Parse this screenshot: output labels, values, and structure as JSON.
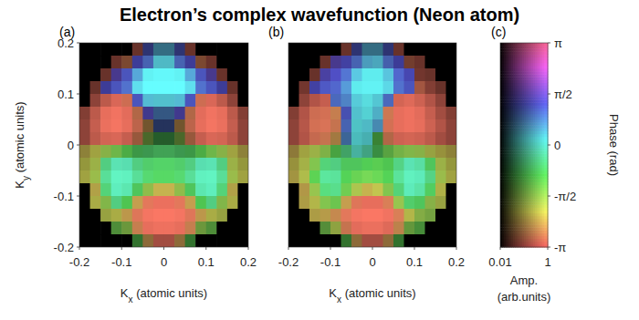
{
  "title": "Electron’s complex wavefunction (Neon atom)",
  "chart_data": [
    {
      "type": "heatmap",
      "panel_label": "(a)",
      "xlabel": "Kx (atomic units)",
      "ylabel": "Ky (atomic units)",
      "xlim": [
        -0.2,
        0.2
      ],
      "ylim": [
        -0.2,
        0.2
      ],
      "xticks": [
        -0.2,
        -0.1,
        0,
        0.1,
        0.2
      ],
      "yticks": [
        -0.2,
        -0.1,
        0,
        0.1,
        0.2
      ],
      "x": [
        -0.1875,
        -0.1625,
        -0.1375,
        -0.1125,
        -0.0875,
        -0.0625,
        -0.0375,
        -0.0125,
        0.0125,
        0.0375,
        0.0625,
        0.0875,
        0.1125,
        0.1375,
        0.1625,
        0.1875
      ],
      "y": [
        0.1875,
        0.1625,
        0.1375,
        0.1125,
        0.0875,
        0.0625,
        0.0375,
        0.0125,
        -0.0125,
        -0.0375,
        -0.0625,
        -0.0875,
        -0.1125,
        -0.1375,
        -0.1625,
        -0.1875
      ],
      "amplitude": [
        [
          0.01,
          0.01,
          0.01,
          0.01,
          0.01,
          0.05,
          0.06,
          0.08,
          0.08,
          0.06,
          0.05,
          0.01,
          0.01,
          0.01,
          0.01,
          0.01
        ],
        [
          0.01,
          0.01,
          0.01,
          0.05,
          0.07,
          0.12,
          0.2,
          0.3,
          0.3,
          0.2,
          0.12,
          0.07,
          0.05,
          0.01,
          0.01,
          0.01
        ],
        [
          0.01,
          0.01,
          0.05,
          0.1,
          0.25,
          0.45,
          0.8,
          0.9,
          0.9,
          0.8,
          0.45,
          0.25,
          0.1,
          0.05,
          0.01,
          0.01
        ],
        [
          0.01,
          0.05,
          0.12,
          0.25,
          0.35,
          0.7,
          1,
          1,
          1,
          1,
          0.7,
          0.35,
          0.25,
          0.12,
          0.05,
          0.01
        ],
        [
          0.01,
          0.1,
          0.25,
          0.45,
          0.35,
          0.25,
          0.4,
          0.35,
          0.35,
          0.4,
          0.25,
          0.35,
          0.45,
          0.25,
          0.1,
          0.01
        ],
        [
          0.08,
          0.25,
          0.6,
          0.75,
          0.55,
          0.2,
          0.1,
          0.08,
          0.08,
          0.1,
          0.2,
          0.55,
          0.75,
          0.6,
          0.25,
          0.08
        ],
        [
          0.1,
          0.3,
          0.65,
          0.8,
          0.6,
          0.25,
          0.06,
          0.04,
          0.04,
          0.06,
          0.25,
          0.6,
          0.8,
          0.65,
          0.3,
          0.1
        ],
        [
          0.1,
          0.25,
          0.4,
          0.45,
          0.3,
          0.12,
          0.05,
          0.04,
          0.04,
          0.05,
          0.12,
          0.3,
          0.45,
          0.4,
          0.25,
          0.1
        ],
        [
          0.1,
          0.15,
          0.2,
          0.22,
          0.18,
          0.12,
          0.12,
          0.15,
          0.15,
          0.12,
          0.12,
          0.18,
          0.22,
          0.2,
          0.15,
          0.1
        ],
        [
          0.12,
          0.2,
          0.35,
          0.55,
          0.5,
          0.35,
          0.35,
          0.4,
          0.4,
          0.35,
          0.35,
          0.5,
          0.55,
          0.35,
          0.2,
          0.12
        ],
        [
          0.15,
          0.25,
          0.5,
          0.8,
          0.75,
          0.5,
          0.45,
          0.45,
          0.45,
          0.45,
          0.5,
          0.75,
          0.8,
          0.5,
          0.25,
          0.15
        ],
        [
          0.01,
          0.2,
          0.4,
          0.7,
          0.6,
          0.3,
          0.25,
          0.3,
          0.3,
          0.25,
          0.3,
          0.6,
          0.7,
          0.4,
          0.2,
          0.01
        ],
        [
          0.01,
          0.18,
          0.22,
          0.35,
          0.3,
          0.3,
          0.55,
          0.65,
          0.65,
          0.55,
          0.3,
          0.3,
          0.35,
          0.22,
          0.18,
          0.01
        ],
        [
          0.01,
          0.01,
          0.15,
          0.18,
          0.25,
          0.5,
          0.8,
          0.9,
          0.9,
          0.8,
          0.5,
          0.25,
          0.18,
          0.15,
          0.01,
          0.01
        ],
        [
          0.01,
          0.01,
          0.01,
          0.1,
          0.12,
          0.3,
          0.6,
          0.7,
          0.7,
          0.6,
          0.3,
          0.12,
          0.1,
          0.01,
          0.01,
          0.01
        ],
        [
          0.01,
          0.01,
          0.01,
          0.01,
          0.01,
          0.06,
          0.1,
          0.15,
          0.15,
          0.1,
          0.06,
          0.01,
          0.01,
          0.01,
          0.01,
          0.01
        ]
      ],
      "phase": [
        [
          0,
          0,
          0,
          0,
          0,
          -3,
          1.2,
          0.5,
          0.5,
          1.2,
          -3,
          0,
          0,
          0,
          0,
          0
        ],
        [
          0,
          0,
          0,
          -3,
          -2.8,
          1.3,
          1,
          0.3,
          0.3,
          1,
          1.3,
          -2.8,
          -3,
          0,
          0,
          0
        ],
        [
          0,
          0,
          -3,
          1.5,
          1.2,
          0.6,
          0.2,
          0.2,
          0.2,
          0.2,
          0.6,
          1.2,
          1.5,
          -3,
          0,
          0
        ],
        [
          0,
          -3,
          1.3,
          1.2,
          1,
          0.3,
          0.2,
          0.2,
          0.2,
          0.2,
          0.3,
          1,
          1.2,
          1.3,
          -3,
          0
        ],
        [
          0,
          -3,
          -3,
          -3,
          -2.9,
          1.2,
          0.4,
          0.3,
          0.3,
          0.4,
          1.2,
          -2.9,
          -3,
          -3,
          -3,
          0
        ],
        [
          -3,
          -3,
          -3,
          -3,
          -3,
          -2.8,
          1.4,
          0.8,
          0.8,
          1.4,
          -2.8,
          -3,
          -3,
          -3,
          -3,
          -3
        ],
        [
          -3,
          -3,
          -3,
          -3,
          -3,
          -2.9,
          -2.5,
          1,
          1,
          -2.5,
          -2.9,
          -3,
          -3,
          -3,
          -3,
          -3
        ],
        [
          -3,
          -3,
          -3,
          -3,
          -3,
          -2.8,
          -1.5,
          -0.8,
          -0.8,
          -1.5,
          -2.8,
          -3,
          -3,
          -3,
          -3,
          -3
        ],
        [
          -2.2,
          -2,
          -1.6,
          -1.3,
          -1,
          -0.8,
          -0.7,
          -0.7,
          -0.7,
          -0.7,
          -0.8,
          -1,
          -1.3,
          -1.6,
          -2,
          -2.2
        ],
        [
          -2,
          -1.8,
          -0.5,
          -0.2,
          -0.2,
          -0.5,
          -0.7,
          -0.75,
          -0.75,
          -0.7,
          -0.5,
          -0.2,
          -0.2,
          -0.5,
          -1.8,
          -2
        ],
        [
          -2,
          -1.7,
          -0.4,
          -0.2,
          -0.2,
          -0.4,
          -0.7,
          -0.8,
          -0.8,
          -0.7,
          -0.4,
          -0.2,
          -0.2,
          -0.4,
          -1.7,
          -2
        ],
        [
          0,
          -2.2,
          -0.6,
          -0.2,
          -0.25,
          -0.8,
          -1.6,
          -2.2,
          -2.2,
          -1.6,
          -0.8,
          -0.25,
          -0.2,
          -0.6,
          -2.2,
          0
        ],
        [
          0,
          -2,
          -1.5,
          -0.5,
          -0.9,
          -2.4,
          -2.9,
          -3,
          -3,
          -2.9,
          -2.4,
          -0.9,
          -0.5,
          -1.5,
          -2,
          0
        ],
        [
          0,
          0,
          -1.9,
          -2,
          -2.4,
          -2.9,
          -3,
          -3,
          -3,
          -3,
          -2.9,
          -2.4,
          -2,
          -1.9,
          0,
          0
        ],
        [
          0,
          0,
          0,
          -1.2,
          -1.5,
          -2.7,
          -3,
          -3,
          -3,
          -3,
          -2.7,
          -1.5,
          -1.2,
          0,
          0,
          0
        ],
        [
          0,
          0,
          0,
          0,
          0,
          -1,
          -2.5,
          -3,
          -3,
          -2.5,
          -1,
          0,
          0,
          0,
          0,
          0
        ]
      ]
    },
    {
      "type": "heatmap",
      "panel_label": "(b)",
      "xlabel": "Kx (atomic units)",
      "tick_labels": "x",
      "xlim": [
        -0.2,
        0.2
      ],
      "ylim": [
        -0.2,
        0.2
      ],
      "xticks": [
        -0.2,
        -0.1,
        0,
        0.1,
        0.2
      ],
      "x": [
        -0.1875,
        -0.1625,
        -0.1375,
        -0.1125,
        -0.0875,
        -0.0625,
        -0.0375,
        -0.0125,
        0.0125,
        0.0375,
        0.0625,
        0.0875,
        0.1125,
        0.1375,
        0.1625,
        0.1875
      ],
      "y": [
        0.1875,
        0.1625,
        0.1375,
        0.1125,
        0.0875,
        0.0625,
        0.0375,
        0.0125,
        -0.0125,
        -0.0375,
        -0.0625,
        -0.0875,
        -0.1125,
        -0.1375,
        -0.1625,
        -0.1875
      ],
      "amplitude": [
        [
          0.01,
          0.01,
          0.01,
          0.01,
          0.01,
          0.05,
          0.06,
          0.08,
          0.08,
          0.06,
          0.05,
          0.01,
          0.01,
          0.01,
          0.01,
          0.01
        ],
        [
          0.01,
          0.01,
          0.01,
          0.05,
          0.1,
          0.15,
          0.2,
          0.25,
          0.25,
          0.18,
          0.12,
          0.06,
          0.05,
          0.01,
          0.01,
          0.01
        ],
        [
          0.01,
          0.01,
          0.05,
          0.15,
          0.3,
          0.4,
          0.55,
          0.7,
          0.7,
          0.5,
          0.35,
          0.2,
          0.06,
          0.05,
          0.01,
          0.01
        ],
        [
          0.01,
          0.06,
          0.15,
          0.3,
          0.35,
          0.45,
          0.7,
          0.8,
          0.8,
          0.6,
          0.35,
          0.25,
          0.15,
          0.08,
          0.05,
          0.01
        ],
        [
          0.01,
          0.1,
          0.2,
          0.3,
          0.25,
          0.3,
          0.45,
          0.5,
          0.4,
          0.25,
          0.4,
          0.5,
          0.35,
          0.2,
          0.1,
          0.01
        ],
        [
          0.08,
          0.2,
          0.35,
          0.4,
          0.3,
          0.2,
          0.35,
          0.4,
          0.3,
          0.35,
          0.6,
          0.7,
          0.55,
          0.3,
          0.15,
          0.08
        ],
        [
          0.1,
          0.22,
          0.4,
          0.45,
          0.3,
          0.2,
          0.3,
          0.3,
          0.2,
          0.4,
          0.6,
          0.7,
          0.6,
          0.35,
          0.2,
          0.1
        ],
        [
          0.1,
          0.2,
          0.3,
          0.3,
          0.15,
          0.12,
          0.25,
          0.2,
          0.08,
          0.2,
          0.35,
          0.4,
          0.35,
          0.25,
          0.15,
          0.1
        ],
        [
          0.1,
          0.15,
          0.2,
          0.2,
          0.15,
          0.15,
          0.2,
          0.15,
          0.1,
          0.15,
          0.2,
          0.22,
          0.2,
          0.15,
          0.12,
          0.1
        ],
        [
          0.12,
          0.2,
          0.3,
          0.4,
          0.35,
          0.3,
          0.3,
          0.35,
          0.35,
          0.3,
          0.4,
          0.55,
          0.5,
          0.3,
          0.2,
          0.12
        ],
        [
          0.15,
          0.25,
          0.4,
          0.6,
          0.55,
          0.4,
          0.4,
          0.45,
          0.45,
          0.4,
          0.55,
          0.75,
          0.65,
          0.4,
          0.25,
          0.15
        ],
        [
          0.01,
          0.2,
          0.3,
          0.5,
          0.5,
          0.35,
          0.3,
          0.3,
          0.3,
          0.3,
          0.4,
          0.65,
          0.55,
          0.35,
          0.2,
          0.01
        ],
        [
          0.01,
          0.18,
          0.22,
          0.3,
          0.3,
          0.3,
          0.5,
          0.6,
          0.6,
          0.45,
          0.3,
          0.35,
          0.3,
          0.2,
          0.15,
          0.01
        ],
        [
          0.01,
          0.01,
          0.18,
          0.22,
          0.3,
          0.55,
          0.8,
          0.9,
          0.9,
          0.75,
          0.45,
          0.22,
          0.18,
          0.15,
          0.01,
          0.01
        ],
        [
          0.01,
          0.01,
          0.01,
          0.1,
          0.15,
          0.3,
          0.55,
          0.65,
          0.65,
          0.5,
          0.25,
          0.12,
          0.1,
          0.01,
          0.01,
          0.01
        ],
        [
          0.01,
          0.01,
          0.01,
          0.01,
          0.01,
          0.06,
          0.1,
          0.15,
          0.15,
          0.1,
          0.06,
          0.01,
          0.01,
          0.01,
          0.01,
          0.01
        ]
      ],
      "phase": [
        [
          0,
          0,
          0,
          0,
          0,
          -3,
          1.2,
          0.5,
          0.5,
          1.2,
          -3,
          0,
          0,
          0,
          0,
          0
        ],
        [
          0,
          0,
          0,
          -3,
          1.5,
          1.3,
          1,
          0.5,
          0.4,
          1,
          1.3,
          -2.9,
          -3,
          0,
          0,
          0
        ],
        [
          0,
          0,
          -3,
          1.4,
          1.3,
          1,
          0.4,
          0.2,
          0.2,
          0.4,
          1.1,
          1.3,
          -3,
          -3,
          0,
          0
        ],
        [
          0,
          -3,
          1.3,
          1.2,
          1.1,
          0.7,
          0.2,
          0.2,
          0.2,
          0.3,
          1,
          1.2,
          -2.9,
          -3,
          -3,
          0
        ],
        [
          0,
          -3,
          -3,
          -3,
          1,
          0.8,
          0.3,
          0.2,
          0.3,
          1,
          -3,
          -3,
          -3,
          -3,
          -3,
          0
        ],
        [
          -3,
          -3,
          -2.9,
          -2.9,
          -2.7,
          1.2,
          0.3,
          0.2,
          0.4,
          -2.8,
          -3,
          -3,
          -3,
          -3,
          -3,
          -3
        ],
        [
          -3,
          -3,
          -2.9,
          -2.9,
          -2.8,
          1,
          0.2,
          0.3,
          0.6,
          -2.9,
          -3,
          -3,
          -3,
          -3,
          -3,
          -3
        ],
        [
          -3,
          -3,
          -2.9,
          -2.8,
          -2.5,
          0.8,
          0.2,
          0.2,
          -1,
          -2.8,
          -3,
          -3,
          -3,
          -3,
          -3,
          -3
        ],
        [
          -2.3,
          -2,
          -1.8,
          -1.5,
          -1,
          -0.5,
          0,
          -0.2,
          -0.8,
          -1.2,
          -1.4,
          -1.5,
          -1.6,
          -1.9,
          -2.1,
          -2.2
        ],
        [
          -2.1,
          -1.9,
          -1.4,
          -0.6,
          -0.5,
          -0.8,
          -0.8,
          -0.9,
          -1,
          -0.9,
          -0.5,
          -0.2,
          -0.3,
          -0.8,
          -1.8,
          -2
        ],
        [
          -2.2,
          -1.9,
          -1,
          -0.4,
          -0.4,
          -0.9,
          -1.1,
          -1.2,
          -1.1,
          -0.9,
          -0.4,
          -0.2,
          -0.2,
          -0.5,
          -1.7,
          -2
        ],
        [
          0,
          -2.3,
          -1.6,
          -0.6,
          -0.5,
          -1.2,
          -1.8,
          -2.2,
          -2,
          -1.4,
          -0.6,
          -0.2,
          -0.3,
          -0.8,
          -2,
          0
        ],
        [
          0,
          -2.2,
          -2,
          -1.4,
          -1.2,
          -2.4,
          -2.9,
          -3,
          -3,
          -2.8,
          -1.6,
          -0.7,
          -0.8,
          -1.6,
          -1.9,
          0
        ],
        [
          0,
          0,
          -2.2,
          -2.3,
          -2.6,
          -2.9,
          -3,
          -3,
          -3,
          -3,
          -2.8,
          -2,
          -1.6,
          -1.5,
          0,
          0
        ],
        [
          0,
          0,
          0,
          -1.3,
          -1.8,
          -2.8,
          -3,
          -3,
          -3,
          -3,
          -2.6,
          -1.4,
          -1.1,
          0,
          0,
          0
        ],
        [
          0,
          0,
          0,
          0,
          0,
          -1,
          -2.5,
          -3,
          -3,
          -2.5,
          -1,
          0,
          0,
          0,
          0,
          0
        ]
      ]
    },
    {
      "type": "colorbar",
      "panel_label": "(c)",
      "xlabel": [
        "Amp.",
        "(arb.units)"
      ],
      "ylabel": "Phase (rad)",
      "log": "x",
      "xlim": [
        0.01,
        1
      ],
      "xticks": [
        0.01,
        1
      ],
      "ylim": [
        -3.1416,
        3.1416
      ],
      "yticks": [
        {
          "value": 3.1416,
          "label": "π"
        },
        {
          "value": 1.5708,
          "label": "π/2"
        },
        0,
        {
          "value": -1.5708,
          "label": "-π/2"
        },
        {
          "value": -3.1416,
          "label": "-π"
        }
      ]
    }
  ]
}
